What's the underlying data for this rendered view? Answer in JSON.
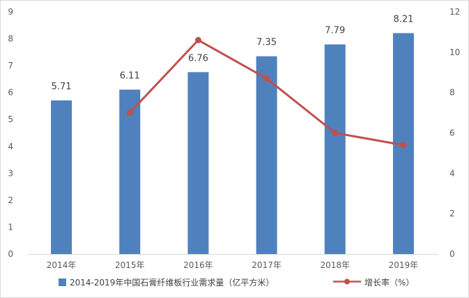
{
  "chart_data": {
    "type": "bar",
    "title": "",
    "categories": [
      "2014年",
      "2015年",
      "2016年",
      "2017年",
      "2018年",
      "2019年"
    ],
    "series": [
      {
        "name": "2014-2019年中国石膏纤维板行业需求量（亿平方米）",
        "type": "bar",
        "axis": "left",
        "color": "#4f81bd",
        "values": [
          5.71,
          6.11,
          6.76,
          7.35,
          7.79,
          8.21
        ],
        "data_labels": [
          "5.71",
          "6.11",
          "6.76",
          "7.35",
          "7.79",
          "8.21"
        ]
      },
      {
        "name": "增长率（%）",
        "type": "line",
        "axis": "right",
        "color": "#c0504d",
        "values": [
          null,
          7.0,
          10.6,
          8.7,
          6.0,
          5.4
        ]
      }
    ],
    "y_left": {
      "ylim": [
        0,
        9
      ],
      "ticks": [
        "0",
        "1",
        "2",
        "3",
        "4",
        "5",
        "6",
        "7",
        "8",
        "9"
      ]
    },
    "y_right": {
      "ylim": [
        0,
        12
      ],
      "ticks": [
        "0",
        "2",
        "4",
        "6",
        "8",
        "10",
        "12"
      ]
    },
    "grid": false,
    "legend_position": "bottom"
  }
}
